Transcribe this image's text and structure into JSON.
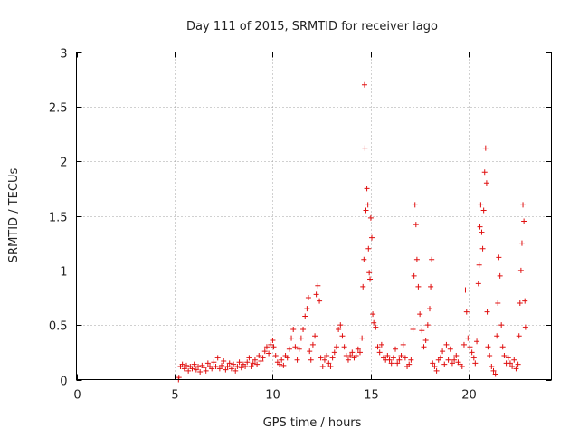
{
  "chart_data": {
    "type": "scatter",
    "title": "Day 111 of 2015, SRMTID for receiver lago",
    "xlabel": "GPS time / hours",
    "ylabel": "SRMTID / TECUs",
    "xlim": [
      0,
      24.2
    ],
    "ylim": [
      0,
      3
    ],
    "xticks": [
      "0",
      "5",
      "10",
      "15",
      "20"
    ],
    "xtick_values": [
      0,
      5,
      10,
      15,
      20
    ],
    "yticks": [
      "0",
      "0.5",
      "1",
      "1.5",
      "2",
      "2.5",
      "3"
    ],
    "ytick_values": [
      0,
      0.5,
      1,
      1.5,
      2,
      2.5,
      3
    ],
    "grid": true,
    "marker": "plus",
    "color": "#e01010",
    "series": [
      {
        "points": [
          [
            5.2,
            0.0
          ],
          [
            5.22,
            0.02
          ],
          [
            5.3,
            0.12
          ],
          [
            5.4,
            0.14
          ],
          [
            5.5,
            0.1
          ],
          [
            5.6,
            0.13
          ],
          [
            5.7,
            0.08
          ],
          [
            5.8,
            0.12
          ],
          [
            5.9,
            0.1
          ],
          [
            6.0,
            0.14
          ],
          [
            6.1,
            0.09
          ],
          [
            6.2,
            0.12
          ],
          [
            6.3,
            0.07
          ],
          [
            6.4,
            0.13
          ],
          [
            6.5,
            0.11
          ],
          [
            6.6,
            0.08
          ],
          [
            6.7,
            0.15
          ],
          [
            6.8,
            0.12
          ],
          [
            6.9,
            0.1
          ],
          [
            7.0,
            0.16
          ],
          [
            7.1,
            0.12
          ],
          [
            7.2,
            0.2
          ],
          [
            7.3,
            0.1
          ],
          [
            7.4,
            0.13
          ],
          [
            7.5,
            0.17
          ],
          [
            7.6,
            0.09
          ],
          [
            7.7,
            0.12
          ],
          [
            7.8,
            0.15
          ],
          [
            7.9,
            0.1
          ],
          [
            8.0,
            0.14
          ],
          [
            8.1,
            0.08
          ],
          [
            8.2,
            0.12
          ],
          [
            8.3,
            0.16
          ],
          [
            8.4,
            0.11
          ],
          [
            8.5,
            0.14
          ],
          [
            8.6,
            0.12
          ],
          [
            8.7,
            0.16
          ],
          [
            8.8,
            0.2
          ],
          [
            8.9,
            0.12
          ],
          [
            9.0,
            0.15
          ],
          [
            9.1,
            0.18
          ],
          [
            9.2,
            0.14
          ],
          [
            9.3,
            0.22
          ],
          [
            9.4,
            0.17
          ],
          [
            9.5,
            0.2
          ],
          [
            9.6,
            0.26
          ],
          [
            9.7,
            0.3
          ],
          [
            9.8,
            0.24
          ],
          [
            9.9,
            0.32
          ],
          [
            10.0,
            0.36
          ],
          [
            10.05,
            0.3
          ],
          [
            10.15,
            0.22
          ],
          [
            10.25,
            0.16
          ],
          [
            10.35,
            0.14
          ],
          [
            10.45,
            0.18
          ],
          [
            10.55,
            0.13
          ],
          [
            10.65,
            0.22
          ],
          [
            10.75,
            0.2
          ],
          [
            10.85,
            0.28
          ],
          [
            10.95,
            0.38
          ],
          [
            11.05,
            0.46
          ],
          [
            11.15,
            0.3
          ],
          [
            11.25,
            0.18
          ],
          [
            11.35,
            0.28
          ],
          [
            11.45,
            0.38
          ],
          [
            11.55,
            0.46
          ],
          [
            11.65,
            0.58
          ],
          [
            11.75,
            0.65
          ],
          [
            11.82,
            0.75
          ],
          [
            11.88,
            0.26
          ],
          [
            11.95,
            0.18
          ],
          [
            12.05,
            0.32
          ],
          [
            12.15,
            0.4
          ],
          [
            12.22,
            0.78
          ],
          [
            12.3,
            0.86
          ],
          [
            12.38,
            0.72
          ],
          [
            12.45,
            0.2
          ],
          [
            12.55,
            0.12
          ],
          [
            12.65,
            0.18
          ],
          [
            12.75,
            0.22
          ],
          [
            12.85,
            0.15
          ],
          [
            12.95,
            0.12
          ],
          [
            13.05,
            0.2
          ],
          [
            13.15,
            0.25
          ],
          [
            13.25,
            0.3
          ],
          [
            13.35,
            0.46
          ],
          [
            13.45,
            0.5
          ],
          [
            13.55,
            0.4
          ],
          [
            13.65,
            0.3
          ],
          [
            13.75,
            0.22
          ],
          [
            13.85,
            0.18
          ],
          [
            13.95,
            0.22
          ],
          [
            14.05,
            0.25
          ],
          [
            14.15,
            0.2
          ],
          [
            14.25,
            0.22
          ],
          [
            14.35,
            0.28
          ],
          [
            14.45,
            0.25
          ],
          [
            14.55,
            0.38
          ],
          [
            14.6,
            0.85
          ],
          [
            14.65,
            1.1
          ],
          [
            14.68,
            2.7
          ],
          [
            14.7,
            2.12
          ],
          [
            14.75,
            1.55
          ],
          [
            14.8,
            1.75
          ],
          [
            14.85,
            1.6
          ],
          [
            14.88,
            1.2
          ],
          [
            14.92,
            0.98
          ],
          [
            14.96,
            0.92
          ],
          [
            15.0,
            1.48
          ],
          [
            15.05,
            1.3
          ],
          [
            15.1,
            0.6
          ],
          [
            15.15,
            0.52
          ],
          [
            15.25,
            0.48
          ],
          [
            15.35,
            0.3
          ],
          [
            15.45,
            0.25
          ],
          [
            15.55,
            0.32
          ],
          [
            15.65,
            0.2
          ],
          [
            15.75,
            0.18
          ],
          [
            15.85,
            0.22
          ],
          [
            15.95,
            0.18
          ],
          [
            16.05,
            0.15
          ],
          [
            16.15,
            0.2
          ],
          [
            16.25,
            0.28
          ],
          [
            16.35,
            0.15
          ],
          [
            16.45,
            0.18
          ],
          [
            16.55,
            0.22
          ],
          [
            16.65,
            0.32
          ],
          [
            16.75,
            0.2
          ],
          [
            16.85,
            0.12
          ],
          [
            16.95,
            0.14
          ],
          [
            17.05,
            0.18
          ],
          [
            17.15,
            0.46
          ],
          [
            17.2,
            0.95
          ],
          [
            17.25,
            1.6
          ],
          [
            17.3,
            1.42
          ],
          [
            17.35,
            1.1
          ],
          [
            17.42,
            0.85
          ],
          [
            17.5,
            0.6
          ],
          [
            17.6,
            0.45
          ],
          [
            17.7,
            0.3
          ],
          [
            17.8,
            0.36
          ],
          [
            17.9,
            0.5
          ],
          [
            18.0,
            0.65
          ],
          [
            18.05,
            0.85
          ],
          [
            18.1,
            1.1
          ],
          [
            18.15,
            0.15
          ],
          [
            18.25,
            0.12
          ],
          [
            18.35,
            0.08
          ],
          [
            18.45,
            0.18
          ],
          [
            18.55,
            0.2
          ],
          [
            18.65,
            0.26
          ],
          [
            18.75,
            0.14
          ],
          [
            18.85,
            0.32
          ],
          [
            18.95,
            0.18
          ],
          [
            19.05,
            0.28
          ],
          [
            19.15,
            0.15
          ],
          [
            19.25,
            0.18
          ],
          [
            19.35,
            0.22
          ],
          [
            19.45,
            0.16
          ],
          [
            19.55,
            0.14
          ],
          [
            19.65,
            0.12
          ],
          [
            19.75,
            0.32
          ],
          [
            19.82,
            0.82
          ],
          [
            19.88,
            0.62
          ],
          [
            19.95,
            0.38
          ],
          [
            20.05,
            0.3
          ],
          [
            20.15,
            0.25
          ],
          [
            20.25,
            0.2
          ],
          [
            20.32,
            0.15
          ],
          [
            20.4,
            0.35
          ],
          [
            20.48,
            0.88
          ],
          [
            20.52,
            1.05
          ],
          [
            20.56,
            1.4
          ],
          [
            20.6,
            1.6
          ],
          [
            20.65,
            1.35
          ],
          [
            20.7,
            1.2
          ],
          [
            20.75,
            1.55
          ],
          [
            20.8,
            1.9
          ],
          [
            20.85,
            2.12
          ],
          [
            20.9,
            1.8
          ],
          [
            20.93,
            0.62
          ],
          [
            20.97,
            0.3
          ],
          [
            21.05,
            0.22
          ],
          [
            21.15,
            0.12
          ],
          [
            21.25,
            0.08
          ],
          [
            21.35,
            0.05
          ],
          [
            21.42,
            0.4
          ],
          [
            21.47,
            0.7
          ],
          [
            21.52,
            1.12
          ],
          [
            21.58,
            0.95
          ],
          [
            21.65,
            0.5
          ],
          [
            21.72,
            0.3
          ],
          [
            21.8,
            0.22
          ],
          [
            21.9,
            0.15
          ],
          [
            22.0,
            0.2
          ],
          [
            22.1,
            0.15
          ],
          [
            22.2,
            0.12
          ],
          [
            22.3,
            0.18
          ],
          [
            22.4,
            0.1
          ],
          [
            22.5,
            0.14
          ],
          [
            22.55,
            0.4
          ],
          [
            22.6,
            0.7
          ],
          [
            22.65,
            1.0
          ],
          [
            22.7,
            1.25
          ],
          [
            22.75,
            1.6
          ],
          [
            22.8,
            1.45
          ],
          [
            22.85,
            0.72
          ],
          [
            22.88,
            0.48
          ]
        ]
      }
    ]
  }
}
